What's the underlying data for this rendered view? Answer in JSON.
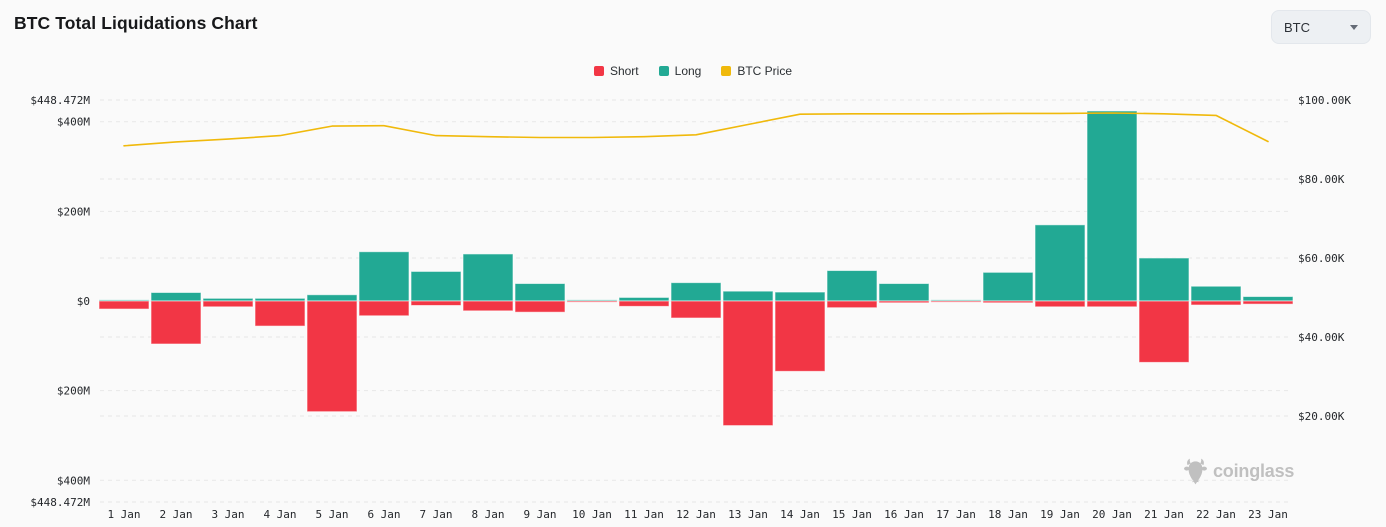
{
  "header": {
    "title": "BTC Total Liquidations Chart",
    "coin_selector": {
      "value": "BTC",
      "icon": "chevron-down-icon"
    }
  },
  "legend": [
    {
      "label": "Short",
      "color": "#f23645"
    },
    {
      "label": "Long",
      "color": "#22a994"
    },
    {
      "label": "BTC Price",
      "color": "#f0b90b"
    }
  ],
  "watermark": {
    "label": "coinglass",
    "icon": "bull-icon",
    "color": "#bcbcbc"
  },
  "chart_data": {
    "type": "bar",
    "subtype": "diverging-bars-with-line",
    "title": "BTC Total Liquidations Chart",
    "grid": "dashed-horizontal",
    "legend_position": "top-center",
    "categories": [
      "1 Jan",
      "2 Jan",
      "3 Jan",
      "4 Jan",
      "5 Jan",
      "6 Jan",
      "7 Jan",
      "8 Jan",
      "9 Jan",
      "10 Jan",
      "11 Jan",
      "12 Jan",
      "13 Jan",
      "14 Jan",
      "15 Jan",
      "16 Jan",
      "17 Jan",
      "18 Jan",
      "19 Jan",
      "20 Jan",
      "21 Jan",
      "22 Jan",
      "23 Jan"
    ],
    "series": [
      {
        "name": "Long",
        "kind": "bar",
        "direction": "up",
        "axis": "left",
        "unit": "USD millions",
        "color": "#22a994",
        "values": [
          2,
          19,
          6,
          6,
          14,
          110,
          66,
          105,
          39,
          2,
          8,
          41,
          22,
          20,
          68,
          39,
          2,
          64,
          170,
          424,
          96,
          33,
          10
        ]
      },
      {
        "name": "Short",
        "kind": "bar",
        "direction": "down",
        "axis": "left",
        "unit": "USD millions",
        "color": "#f23645",
        "values": [
          18,
          96,
          13,
          56,
          247,
          33,
          10,
          22,
          25,
          1,
          12,
          38,
          278,
          157,
          15,
          4,
          2,
          4,
          13,
          13,
          137,
          9,
          7
        ]
      },
      {
        "name": "BTC Price",
        "kind": "line",
        "axis": "right",
        "unit": "USD thousands",
        "color": "#f0b90b",
        "values": [
          88.4,
          89.4,
          90.1,
          91.0,
          93.4,
          93.5,
          91.0,
          90.7,
          90.5,
          90.5,
          90.7,
          91.2,
          93.8,
          96.4,
          96.5,
          96.5,
          96.5,
          96.6,
          96.6,
          96.7,
          96.5,
          96.1,
          89.5
        ]
      }
    ],
    "left_axis": {
      "title": "Liquidations",
      "max_m": 448.472,
      "ticks": [
        {
          "label": "$448.472M",
          "value_m": 448.472
        },
        {
          "label": "$400M",
          "value_m": 400
        },
        {
          "label": "$200M",
          "value_m": 200
        },
        {
          "label": "$0",
          "value_m": 0
        },
        {
          "label": "$200M",
          "value_m": -200
        },
        {
          "label": "$400M",
          "value_m": -400
        },
        {
          "label": "$448.472M",
          "value_m": -448.472
        }
      ]
    },
    "right_axis": {
      "title": "BTC Price",
      "top_k": 100,
      "ticks": [
        {
          "label": "$100.00K",
          "value_k": 100
        },
        {
          "label": "$80.00K",
          "value_k": 80
        },
        {
          "label": "$60.00K",
          "value_k": 60
        },
        {
          "label": "$40.00K",
          "value_k": 40
        },
        {
          "label": "$20.00K",
          "value_k": 20
        }
      ]
    }
  }
}
